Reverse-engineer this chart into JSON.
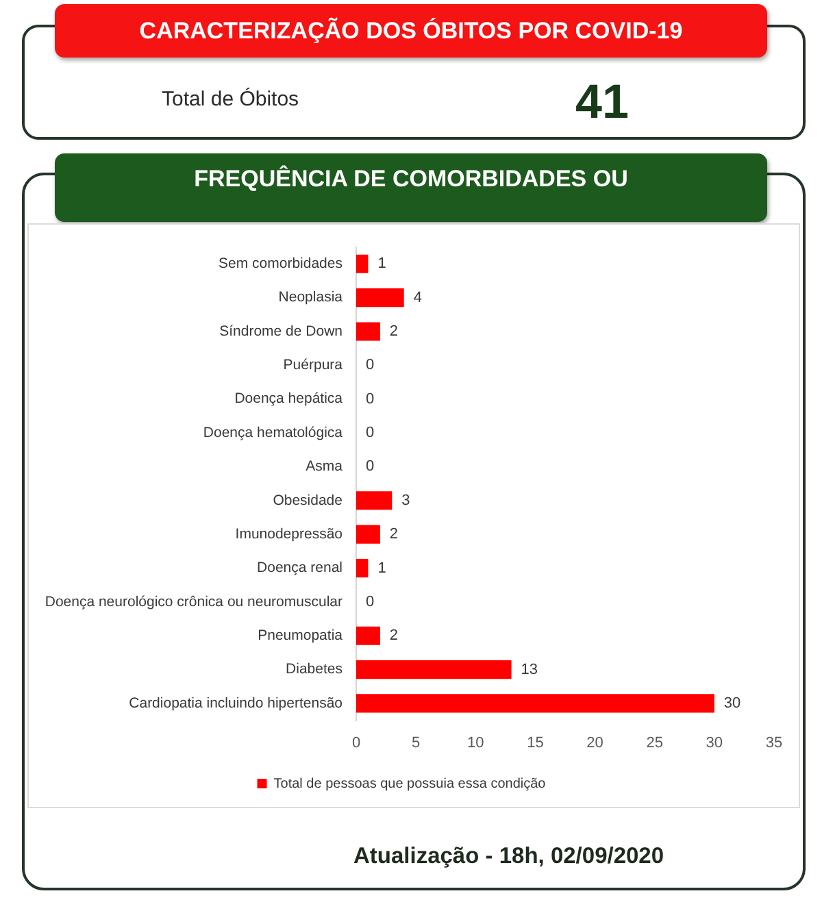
{
  "chart_data": [
    {
      "type": "other",
      "title": "CARACTERIZAÇÃO DOS ÓBITOS POR COVID-19",
      "annotations": [
        "Total de Óbitos",
        "41"
      ]
    },
    {
      "type": "bar",
      "title": "FREQUÊNCIA DE COMORBIDADES OU",
      "orientation": "horizontal",
      "categories": [
        "Sem comorbidades",
        "Neoplasia",
        "Síndrome de Down",
        "Puérpura",
        "Doença hepática",
        "Doença hematológica",
        "Asma",
        "Obesidade",
        "Imunodepressão",
        "Doença renal",
        "Doença neurológico crônica ou neuromuscular",
        "Pneumopatia",
        "Diabetes",
        "Cardiopatia incluindo hipertensão"
      ],
      "series": [
        {
          "name": "Total de pessoas que possuia essa condição",
          "color": "#ff0000",
          "values": [
            1,
            4,
            2,
            0,
            0,
            0,
            0,
            3,
            2,
            1,
            0,
            2,
            13,
            30
          ]
        }
      ],
      "xlim": [
        0,
        35
      ],
      "xticks": [
        0,
        5,
        10,
        15,
        20,
        25,
        30,
        35
      ],
      "data_labels": true,
      "legend": "bottom",
      "annotations": [
        "Atualização - 18h, 02/09/2020"
      ]
    }
  ]
}
